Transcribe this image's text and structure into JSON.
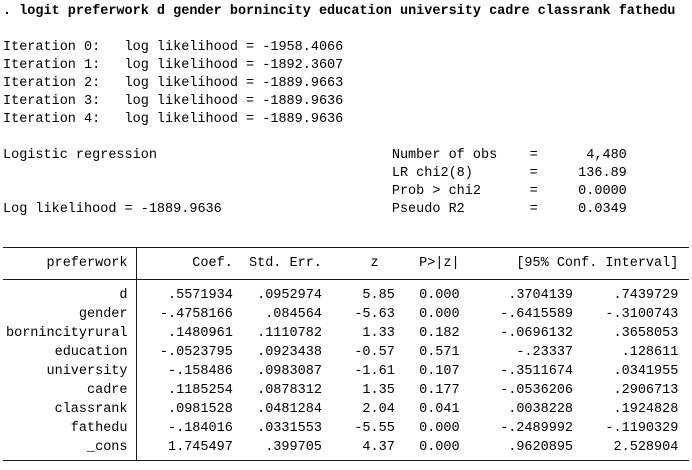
{
  "command": ". logit preferwork d gender bornincity education university cadre classrank fathedu",
  "labels": {
    "log_likelihood_prefix": "log likelihood = "
  },
  "iterations": [
    {
      "label": "Iteration 0:",
      "value": "-1958.4066"
    },
    {
      "label": "Iteration 1:",
      "value": "-1892.3607"
    },
    {
      "label": "Iteration 2:",
      "value": "-1889.9663"
    },
    {
      "label": "Iteration 3:",
      "value": "-1889.9636"
    },
    {
      "label": "Iteration 4:",
      "value": "-1889.9636"
    }
  ],
  "summary": {
    "model_label": "Logistic regression",
    "loglik_label": "Log likelihood = ",
    "loglik_value": "-1889.9636",
    "stats": [
      {
        "label": "Number of obs",
        "eq": "=",
        "value": "4,480"
      },
      {
        "label": "LR chi2(8)",
        "eq": "=",
        "value": "136.89"
      },
      {
        "label": "Prob > chi2",
        "eq": "=",
        "value": "0.0000"
      },
      {
        "label": "Pseudo R2",
        "eq": "=",
        "value": "0.0349"
      }
    ]
  },
  "table": {
    "depvar": "preferwork",
    "headers": {
      "coef": "Coef.",
      "se": "Std. Err.",
      "z": "z",
      "p": "P>|z|",
      "ci": "[95% Conf. Interval]"
    },
    "rows": [
      {
        "var": "d",
        "coef": ".5571934",
        "se": ".0952974",
        "z": "5.85",
        "p": "0.000",
        "lo": ".3704139",
        "hi": ".7439729"
      },
      {
        "var": "gender",
        "coef": "-.4758166",
        "se": ".084564",
        "z": "-5.63",
        "p": "0.000",
        "lo": "-.6415589",
        "hi": "-.3100743"
      },
      {
        "var": "bornincityrural",
        "coef": ".1480961",
        "se": ".1110782",
        "z": "1.33",
        "p": "0.182",
        "lo": "-.0696132",
        "hi": ".3658053"
      },
      {
        "var": "education",
        "coef": "-.0523795",
        "se": ".0923438",
        "z": "-0.57",
        "p": "0.571",
        "lo": "-.23337",
        "hi": ".128611"
      },
      {
        "var": "university",
        "coef": "-.158486",
        "se": ".0983087",
        "z": "-1.61",
        "p": "0.107",
        "lo": "-.3511674",
        "hi": ".0341955"
      },
      {
        "var": "cadre",
        "coef": ".1185254",
        "se": ".0878312",
        "z": "1.35",
        "p": "0.177",
        "lo": "-.0536206",
        "hi": ".2906713"
      },
      {
        "var": "classrank",
        "coef": ".0981528",
        "se": ".0481284",
        "z": "2.04",
        "p": "0.041",
        "lo": ".0038228",
        "hi": ".1924828"
      },
      {
        "var": "fathedu",
        "coef": "-.184016",
        "se": ".0331553",
        "z": "-5.55",
        "p": "0.000",
        "lo": "-.2489992",
        "hi": "-.1190329"
      },
      {
        "var": "_cons",
        "coef": "1.745497",
        "se": ".399705",
        "z": "4.37",
        "p": "0.000",
        "lo": ".9620895",
        "hi": "2.528904"
      }
    ]
  }
}
